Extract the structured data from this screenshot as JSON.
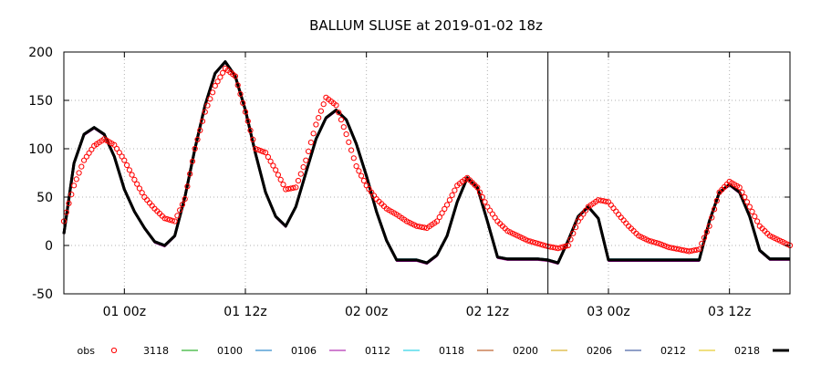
{
  "chart_data": {
    "type": "line",
    "title": "BALLUM SLUSE at 2019-01-02 18z",
    "xlabel": "",
    "ylabel": "",
    "x_unit": "hours since 2018-12-31 18z",
    "xlim": [
      0,
      72
    ],
    "ylim": [
      -50,
      200
    ],
    "y_ticks": [
      {
        "value": 200,
        "label": "200"
      },
      {
        "value": 150,
        "label": "150"
      },
      {
        "value": 100,
        "label": "100"
      },
      {
        "value": 50,
        "label": "50"
      },
      {
        "value": 0,
        "label": "0"
      },
      {
        "value": -50,
        "label": "-50"
      }
    ],
    "x_ticks": [
      {
        "value": 6,
        "label": "01 00z"
      },
      {
        "value": 18,
        "label": "01 12z"
      },
      {
        "value": 30,
        "label": "02 00z"
      },
      {
        "value": 42,
        "label": "02 12z"
      },
      {
        "value": 54,
        "label": "03 00z"
      },
      {
        "value": 66,
        "label": "03 12z"
      }
    ],
    "grid": true,
    "analysis_time_marker": {
      "x": 48
    },
    "legend_placement": "bottom",
    "observations": {
      "name": "obs",
      "color": "#ff0000",
      "x": [
        0,
        1,
        2,
        3,
        4,
        5,
        6,
        7,
        8,
        9,
        10,
        11,
        12,
        13,
        14,
        15,
        16,
        17,
        18,
        19,
        20,
        21,
        22,
        23,
        24,
        25,
        26,
        27,
        28,
        29,
        30,
        31,
        32,
        33,
        34,
        35,
        36,
        37,
        38,
        39,
        40,
        41,
        42,
        43,
        44,
        45,
        46,
        47,
        48,
        49,
        50,
        51,
        52,
        53,
        54,
        55,
        56,
        57,
        58,
        59,
        60,
        61,
        62,
        63,
        64,
        65,
        66,
        67,
        68,
        69,
        70,
        71,
        72
      ],
      "values": [
        25,
        62,
        88,
        103,
        110,
        104,
        88,
        68,
        50,
        38,
        28,
        25,
        48,
        100,
        138,
        165,
        183,
        175,
        138,
        100,
        96,
        78,
        58,
        60,
        88,
        125,
        153,
        145,
        115,
        82,
        62,
        48,
        38,
        32,
        25,
        20,
        18,
        25,
        42,
        62,
        70,
        60,
        40,
        25,
        15,
        10,
        5,
        2,
        -1,
        -3,
        0,
        25,
        40,
        47,
        45,
        32,
        20,
        10,
        5,
        2,
        -2,
        -4,
        -6,
        -4,
        20,
        55,
        66,
        60,
        40,
        20,
        10,
        5,
        0
      ]
    },
    "series": [
      {
        "name": "3118",
        "color": "#00a000",
        "dy": 0.5
      },
      {
        "name": "0100",
        "color": "#0070c0",
        "dy": -0.5
      },
      {
        "name": "0106",
        "color": "#a000a0",
        "dy": -1.5
      },
      {
        "name": "0112",
        "color": "#00c8e0",
        "dy": 1.0
      },
      {
        "name": "0118",
        "color": "#b04000",
        "dy": -1.0
      },
      {
        "name": "0200",
        "color": "#d0a000",
        "dy": 0.3
      },
      {
        "name": "0206",
        "color": "#204090",
        "dy": -0.8
      },
      {
        "name": "0212",
        "color": "#e0c000",
        "dy": 0.8
      },
      {
        "name": "0218",
        "color": "#000000",
        "bold": true,
        "x": [
          0,
          1,
          2,
          3,
          4,
          5,
          6,
          7,
          8,
          9,
          10,
          11,
          12,
          13,
          14,
          15,
          16,
          17,
          18,
          19,
          20,
          21,
          22,
          23,
          24,
          25,
          26,
          27,
          28,
          29,
          30,
          31,
          32,
          33,
          34,
          35,
          36,
          37,
          38,
          39,
          40,
          41,
          42,
          43,
          44,
          45,
          46,
          47,
          48,
          49,
          50,
          51,
          52,
          53,
          54,
          55,
          56,
          57,
          58,
          59,
          60,
          61,
          62,
          63,
          64,
          65,
          66,
          67,
          68,
          69,
          70,
          71,
          72
        ],
        "values": [
          12,
          85,
          115,
          122,
          115,
          92,
          58,
          35,
          18,
          4,
          0,
          10,
          50,
          100,
          145,
          178,
          190,
          175,
          140,
          95,
          55,
          30,
          20,
          40,
          75,
          110,
          132,
          140,
          130,
          105,
          72,
          35,
          5,
          -15,
          -15,
          -15,
          -18,
          -10,
          10,
          45,
          70,
          60,
          25,
          -12,
          -14,
          -14,
          -14,
          -14,
          -15,
          -18,
          5,
          30,
          40,
          28,
          -15,
          -15,
          -15,
          -15,
          -15,
          -15,
          -15,
          -15,
          -15,
          -15,
          25,
          55,
          63,
          55,
          30,
          -5,
          -14,
          -14,
          -14
        ]
      }
    ]
  }
}
